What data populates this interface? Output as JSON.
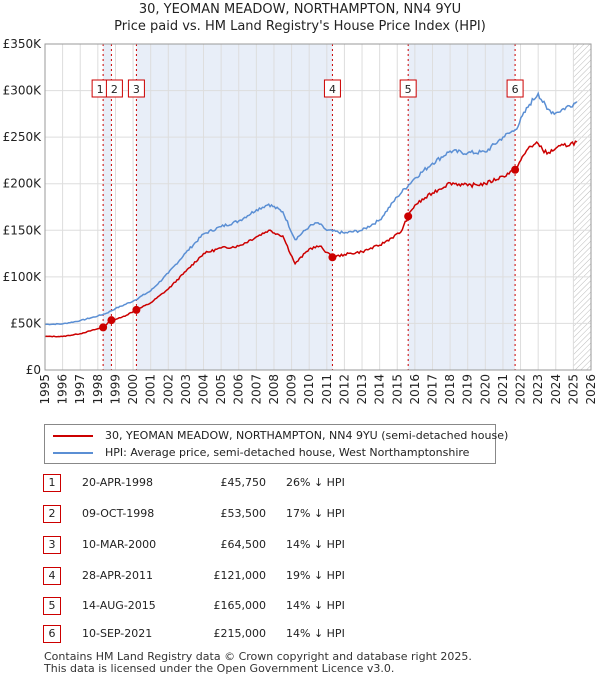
{
  "chart_title_line1": "30, YEOMAN MEADOW, NORTHAMPTON, NN4 9YU",
  "chart_title_line2": "Price paid vs. HM Land Registry's House Price Index (HPI)",
  "colors": {
    "property": "#cc0000",
    "hpi": "#5b8fd4",
    "shade": "#e8eef8",
    "grid": "#dddddd",
    "marker": "#cc0000"
  },
  "legend": {
    "property_label": "30, YEOMAN MEADOW, NORTHAMPTON, NN4 9YU (semi-detached house)",
    "hpi_label": "HPI: Average price, semi-detached house, West Northamptonshire"
  },
  "transactions": [
    {
      "num": "1",
      "date": "20-APR-1998",
      "price": "£45,750",
      "hpi_diff": "26% ↓ HPI",
      "year": 1998.3,
      "value": 45750
    },
    {
      "num": "2",
      "date": "09-OCT-1998",
      "price": "£53,500",
      "hpi_diff": "17% ↓ HPI",
      "year": 1998.77,
      "value": 53500
    },
    {
      "num": "3",
      "date": "10-MAR-2000",
      "price": "£64,500",
      "hpi_diff": "14% ↓ HPI",
      "year": 2000.19,
      "value": 64500
    },
    {
      "num": "4",
      "date": "28-APR-2011",
      "price": "£121,000",
      "hpi_diff": "19% ↓ HPI",
      "year": 2011.32,
      "value": 121000
    },
    {
      "num": "5",
      "date": "14-AUG-2015",
      "price": "£165,000",
      "hpi_diff": "14% ↓ HPI",
      "year": 2015.62,
      "value": 165000
    },
    {
      "num": "6",
      "date": "10-SEP-2021",
      "price": "£215,000",
      "hpi_diff": "14% ↓ HPI",
      "year": 2021.69,
      "value": 215000
    }
  ],
  "footer": {
    "line1": "Contains HM Land Registry data © Crown copyright and database right 2025.",
    "line2": "This data is licensed under the Open Government Licence v3.0."
  },
  "chart_data": {
    "type": "line",
    "title": "30, YEOMAN MEADOW, NORTHAMPTON, NN4 9YU — Price paid vs. HM Land Registry's House Price Index (HPI)",
    "xlabel": "",
    "ylabel": "",
    "xlim": [
      1995,
      2026
    ],
    "ylim": [
      0,
      350000
    ],
    "x_ticks": [
      "1995",
      "1996",
      "1997",
      "1998",
      "1999",
      "2000",
      "2001",
      "2002",
      "2003",
      "2004",
      "2005",
      "2006",
      "2007",
      "2008",
      "2009",
      "2010",
      "2011",
      "2012",
      "2013",
      "2014",
      "2015",
      "2016",
      "2017",
      "2018",
      "2019",
      "2020",
      "2021",
      "2022",
      "2023",
      "2024",
      "2025",
      "2026"
    ],
    "y_ticks": [
      {
        "value": 0,
        "label": "£0"
      },
      {
        "value": 50000,
        "label": "£50K"
      },
      {
        "value": 100000,
        "label": "£100K"
      },
      {
        "value": 150000,
        "label": "£150K"
      },
      {
        "value": 200000,
        "label": "£200K"
      },
      {
        "value": 250000,
        "label": "£250K"
      },
      {
        "value": 300000,
        "label": "£300K"
      },
      {
        "value": 350000,
        "label": "£350K"
      }
    ],
    "hatched_from_year": 2025.0,
    "series": [
      {
        "name": "HPI: Average price, semi-detached house, West Northamptonshire",
        "x": [
          1995,
          1996,
          1997,
          1998,
          1998.5,
          1999,
          2000,
          2001,
          2002,
          2003,
          2004,
          2005,
          2006,
          2007,
          2007.7,
          2008.5,
          2009.2,
          2010,
          2010.5,
          2011,
          2012,
          2013,
          2014,
          2015,
          2016,
          2017,
          2018,
          2019,
          2020,
          2021,
          2021.7,
          2022.5,
          2023,
          2023.5,
          2024,
          2025.2
        ],
        "values": [
          49000,
          49500,
          53000,
          58000,
          61000,
          66000,
          74000,
          85000,
          104000,
          126000,
          146000,
          154000,
          160000,
          172000,
          178000,
          170000,
          140000,
          154000,
          158000,
          150000,
          147000,
          150000,
          161000,
          186000,
          206000,
          222000,
          235000,
          233000,
          234000,
          250000,
          258000,
          285000,
          297000,
          280000,
          276000,
          288000
        ]
      },
      {
        "name": "30, YEOMAN MEADOW, NORTHAMPTON, NN4 9YU (semi-detached house)",
        "x": [
          1995,
          1996,
          1997,
          1998.3,
          1998.77,
          1999.3,
          2000.19,
          2001,
          2002,
          2003,
          2004,
          2005,
          2006,
          2007,
          2007.7,
          2008.5,
          2009.2,
          2010,
          2010.6,
          2011.32,
          2012,
          2013,
          2014,
          2015.2,
          2015.62,
          2016,
          2017,
          2018,
          2019,
          2020,
          2021,
          2021.69,
          2022.5,
          2023,
          2023.5,
          2024,
          2025.2
        ],
        "values": [
          36000,
          36000,
          39000,
          45750,
          53500,
          56000,
          64500,
          72000,
          87000,
          106000,
          125000,
          131000,
          133000,
          143000,
          150000,
          144000,
          114000,
          130000,
          133000,
          121000,
          124000,
          127000,
          134000,
          148000,
          165000,
          177000,
          190000,
          201000,
          198000,
          200000,
          208000,
          215000,
          240000,
          243000,
          232000,
          238000,
          245000
        ]
      }
    ],
    "legend": [
      "30, YEOMAN MEADOW, NORTHAMPTON, NN4 9YU (semi-detached house)",
      "HPI: Average price, semi-detached house, West Northamptonshire"
    ],
    "legend_position": "bottom"
  }
}
